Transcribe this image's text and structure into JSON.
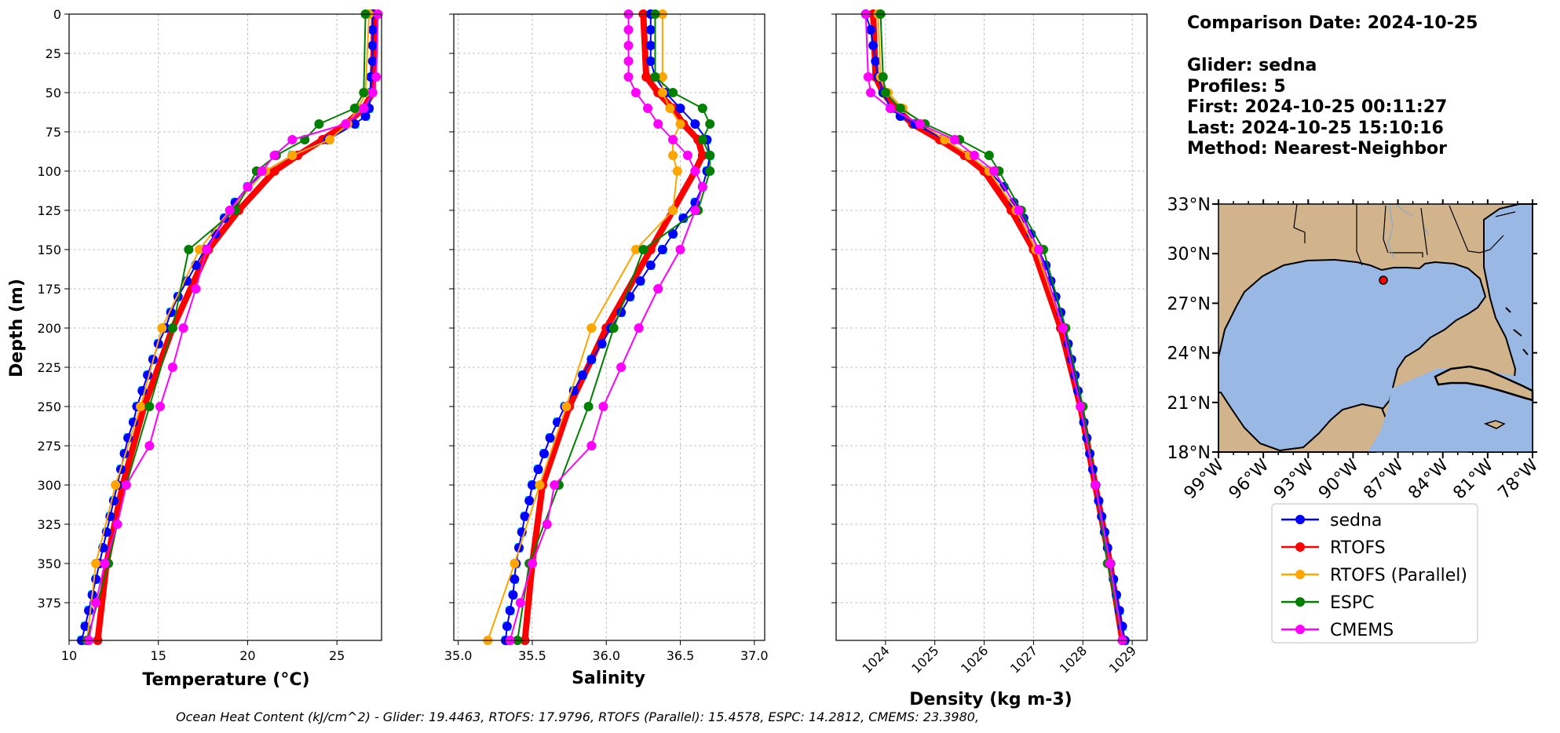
{
  "footer": "Ocean Heat Content (kJ/cm^2) - Glider: 19.4463,  RTOFS: 17.9796,  RTOFS (Parallel): 15.4578,  ESPC: 14.2812,  CMEMS: 23.3980,",
  "info": {
    "comparison_date": "Comparison Date: 2024-10-25",
    "glider": "Glider: sedna",
    "profiles": "Profiles: 5",
    "first": "First: 2024-10-25 00:11:27",
    "last": "Last: 2024-10-25 15:10:16",
    "method": "Method: Nearest-Neighbor"
  },
  "legend": [
    {
      "name": "sedna",
      "color": "#0000ff"
    },
    {
      "name": "RTOFS",
      "color": "#ff0000"
    },
    {
      "name": "RTOFS (Parallel)",
      "color": "#ffa500"
    },
    {
      "name": "ESPC",
      "color": "#008000"
    },
    {
      "name": "CMEMS",
      "color": "#ff00ff"
    }
  ],
  "colors": {
    "sedna": "#0000ff",
    "sedna_profiles": "#00ffff",
    "RTOFS": "#ff0000",
    "RTOFS_parallel": "#ffa500",
    "ESPC": "#008000",
    "CMEMS": "#ff00ff",
    "land": "#d2b48c",
    "ocean": "#9ab8e4"
  },
  "chart_data": [
    {
      "type": "line",
      "name": "temperature",
      "xlabel": "Temperature (°C)",
      "ylabel": "Depth (m)",
      "xlim": [
        10,
        27.5
      ],
      "ylim": [
        399,
        0
      ],
      "xticks": [
        10,
        15,
        20,
        25
      ],
      "yticks": [
        0,
        25,
        50,
        75,
        100,
        125,
        150,
        175,
        200,
        225,
        250,
        275,
        300,
        325,
        350,
        375
      ],
      "grid": true,
      "series": [
        {
          "key": "sedna",
          "depth": [
            0,
            10,
            20,
            30,
            40,
            50,
            60,
            65,
            70,
            80,
            90,
            100,
            110,
            120,
            130,
            140,
            150,
            160,
            170,
            180,
            190,
            200,
            210,
            220,
            230,
            240,
            250,
            260,
            270,
            280,
            290,
            300,
            310,
            320,
            330,
            340,
            350,
            360,
            370,
            380,
            390,
            399
          ],
          "values": [
            27,
            27,
            27,
            27,
            26.9,
            26.9,
            26.8,
            26.6,
            26,
            24.5,
            22.5,
            21,
            20,
            19.3,
            18.7,
            18.2,
            17.6,
            17.1,
            16.6,
            16.1,
            15.7,
            15.4,
            15,
            14.7,
            14.4,
            14.1,
            13.8,
            13.6,
            13.3,
            13.1,
            12.9,
            12.7,
            12.5,
            12.3,
            12.1,
            11.9,
            11.7,
            11.5,
            11.3,
            11.1,
            10.9,
            10.7
          ]
        },
        {
          "key": "RTOFS",
          "depth": [
            0,
            50,
            60,
            70,
            80,
            90,
            100,
            125,
            150,
            200,
            250,
            300,
            350,
            399
          ],
          "values": [
            27.1,
            27,
            26.5,
            25.5,
            24.2,
            22.8,
            21.5,
            19.5,
            17.8,
            15.8,
            14.2,
            13,
            12.1,
            11.6
          ]
        },
        {
          "key": "RTOFS_parallel",
          "depth": [
            0,
            50,
            60,
            70,
            80,
            90,
            100,
            125,
            150,
            200,
            250,
            300,
            350,
            399
          ],
          "values": [
            26.8,
            26.6,
            26.2,
            25.6,
            24.6,
            22.5,
            21,
            19,
            17.3,
            15.2,
            14,
            12.6,
            11.5,
            11
          ]
        },
        {
          "key": "ESPC",
          "depth": [
            0,
            50,
            60,
            70,
            80,
            90,
            100,
            125,
            150,
            200,
            250,
            300,
            350,
            399
          ],
          "values": [
            26.6,
            26.5,
            26,
            24,
            23.2,
            21.6,
            20.5,
            19.3,
            16.7,
            15.8,
            14.5,
            13.2,
            12.2,
            11
          ]
        },
        {
          "key": "CMEMS",
          "depth": [
            0,
            40,
            50,
            60,
            70,
            80,
            90,
            100,
            110,
            125,
            150,
            175,
            200,
            225,
            250,
            275,
            300,
            325,
            350,
            375,
            399
          ],
          "values": [
            27.3,
            27.2,
            27,
            26.5,
            25.5,
            22.5,
            21.5,
            20.8,
            20,
            19,
            17.7,
            17.1,
            16.4,
            15.8,
            15.1,
            14.5,
            13.2,
            12.7,
            12,
            11.5,
            11.1
          ]
        }
      ]
    },
    {
      "type": "line",
      "name": "salinity",
      "xlabel": "Salinity",
      "xlim": [
        34.97,
        37.07
      ],
      "ylim": [
        399,
        0
      ],
      "xticks": [
        35.0,
        35.5,
        36.0,
        36.5,
        37.0
      ],
      "grid": true,
      "series": [
        {
          "key": "sedna",
          "depth": [
            0,
            10,
            20,
            30,
            40,
            50,
            60,
            70,
            80,
            90,
            100,
            110,
            120,
            130,
            140,
            150,
            160,
            170,
            180,
            190,
            200,
            210,
            220,
            230,
            240,
            250,
            260,
            270,
            280,
            290,
            300,
            310,
            320,
            330,
            340,
            350,
            360,
            370,
            380,
            390,
            399
          ],
          "values": [
            36.3,
            36.3,
            36.3,
            36.3,
            36.33,
            36.4,
            36.5,
            36.6,
            36.68,
            36.7,
            36.68,
            36.65,
            36.6,
            36.52,
            36.45,
            36.38,
            36.3,
            36.23,
            36.16,
            36.1,
            36.03,
            35.97,
            35.9,
            35.84,
            35.78,
            35.72,
            35.67,
            35.62,
            35.58,
            35.54,
            35.5,
            35.48,
            35.45,
            35.43,
            35.41,
            35.39,
            35.38,
            35.37,
            35.35,
            35.33,
            35.32
          ]
        },
        {
          "key": "RTOFS",
          "depth": [
            0,
            40,
            50,
            60,
            70,
            80,
            90,
            100,
            125,
            150,
            200,
            250,
            300,
            350,
            399
          ],
          "values": [
            36.25,
            36.27,
            36.35,
            36.45,
            36.52,
            36.62,
            36.65,
            36.6,
            36.45,
            36.3,
            36,
            35.75,
            35.57,
            35.5,
            35.45
          ]
        },
        {
          "key": "RTOFS_parallel",
          "depth": [
            0,
            40,
            50,
            60,
            70,
            80,
            90,
            100,
            125,
            150,
            200,
            250,
            300,
            350,
            399
          ],
          "values": [
            36.38,
            36.38,
            36.38,
            36.43,
            36.5,
            36.45,
            36.45,
            36.48,
            36.45,
            36.2,
            35.9,
            35.73,
            35.55,
            35.38,
            35.2
          ]
        },
        {
          "key": "ESPC",
          "depth": [
            0,
            40,
            50,
            60,
            70,
            80,
            90,
            100,
            125,
            150,
            200,
            250,
            300,
            350,
            399
          ],
          "values": [
            36.33,
            36.33,
            36.45,
            36.65,
            36.7,
            36.65,
            36.7,
            36.7,
            36.62,
            36.25,
            36.05,
            35.88,
            35.68,
            35.48,
            35.4
          ]
        },
        {
          "key": "CMEMS",
          "depth": [
            0,
            10,
            20,
            30,
            40,
            50,
            60,
            70,
            80,
            90,
            100,
            110,
            125,
            150,
            175,
            200,
            225,
            250,
            275,
            300,
            325,
            350,
            375,
            399
          ],
          "values": [
            36.15,
            36.15,
            36.15,
            36.15,
            36.15,
            36.2,
            36.28,
            36.35,
            36.45,
            36.55,
            36.6,
            36.65,
            36.6,
            36.5,
            36.35,
            36.22,
            36.1,
            35.98,
            35.9,
            35.65,
            35.6,
            35.5,
            35.42,
            35.35
          ]
        }
      ]
    },
    {
      "type": "line",
      "name": "density",
      "xlabel": "Density (kg m-3)",
      "xlim": [
        1023.0,
        1029.3
      ],
      "ylim": [
        399,
        0
      ],
      "xticks": [
        1024,
        1025,
        1026,
        1027,
        1028,
        1029
      ],
      "grid": true,
      "series": [
        {
          "key": "sedna",
          "depth": [
            0,
            10,
            20,
            30,
            40,
            50,
            60,
            65,
            70,
            80,
            90,
            100,
            110,
            120,
            130,
            140,
            150,
            160,
            170,
            180,
            190,
            200,
            210,
            220,
            230,
            240,
            250,
            260,
            270,
            280,
            290,
            300,
            310,
            320,
            330,
            340,
            350,
            360,
            370,
            380,
            390,
            399
          ],
          "values": [
            1023.6,
            1023.7,
            1023.75,
            1023.8,
            1023.85,
            1023.95,
            1024.1,
            1024.3,
            1024.6,
            1025.2,
            1025.7,
            1026.1,
            1026.4,
            1026.6,
            1026.8,
            1026.95,
            1027.1,
            1027.25,
            1027.35,
            1027.45,
            1027.55,
            1027.62,
            1027.7,
            1027.77,
            1027.84,
            1027.9,
            1027.96,
            1028.02,
            1028.08,
            1028.14,
            1028.2,
            1028.26,
            1028.32,
            1028.38,
            1028.44,
            1028.5,
            1028.56,
            1028.62,
            1028.68,
            1028.74,
            1028.8,
            1028.85
          ]
        },
        {
          "key": "RTOFS",
          "depth": [
            0,
            40,
            50,
            60,
            70,
            80,
            90,
            100,
            125,
            150,
            200,
            250,
            300,
            350,
            399
          ],
          "values": [
            1023.75,
            1023.8,
            1023.95,
            1024.2,
            1024.55,
            1025.1,
            1025.6,
            1026,
            1026.55,
            1027,
            1027.55,
            1027.95,
            1028.25,
            1028.55,
            1028.8
          ]
        },
        {
          "key": "RTOFS_parallel",
          "depth": [
            0,
            40,
            50,
            60,
            70,
            80,
            90,
            100,
            125,
            150,
            200,
            250,
            300,
            350,
            399
          ],
          "values": [
            1023.85,
            1023.9,
            1024.05,
            1024.35,
            1024.75,
            1025.2,
            1025.7,
            1026.1,
            1026.65,
            1027.05,
            1027.6,
            1027.95,
            1028.25,
            1028.55,
            1028.8
          ]
        },
        {
          "key": "ESPC",
          "depth": [
            0,
            40,
            50,
            60,
            70,
            80,
            90,
            100,
            125,
            150,
            200,
            250,
            300,
            350,
            399
          ],
          "values": [
            1023.9,
            1023.95,
            1024,
            1024.3,
            1024.8,
            1025.5,
            1026.1,
            1026.3,
            1026.75,
            1027.2,
            1027.65,
            1028,
            1028.25,
            1028.5,
            1028.8
          ]
        },
        {
          "key": "CMEMS",
          "depth": [
            0,
            40,
            50,
            60,
            70,
            80,
            90,
            100,
            125,
            150,
            200,
            250,
            300,
            350,
            399
          ],
          "values": [
            1023.6,
            1023.65,
            1023.7,
            1024.1,
            1024.7,
            1025.4,
            1025.8,
            1026.2,
            1026.7,
            1027.1,
            1027.6,
            1027.95,
            1028.25,
            1028.55,
            1028.8
          ]
        }
      ]
    },
    {
      "type": "map",
      "name": "location-map",
      "lon_range": [
        -99,
        -78
      ],
      "lat_range": [
        18,
        33
      ],
      "lon_ticks": [
        "99°W",
        "96°W",
        "93°W",
        "90°W",
        "87°W",
        "84°W",
        "81°W",
        "78°W"
      ],
      "lat_ticks": [
        "33°N",
        "30°N",
        "27°N",
        "24°N",
        "21°N",
        "18°N"
      ],
      "glider_position": {
        "lon": -88.5,
        "lat": 28.8
      }
    }
  ]
}
